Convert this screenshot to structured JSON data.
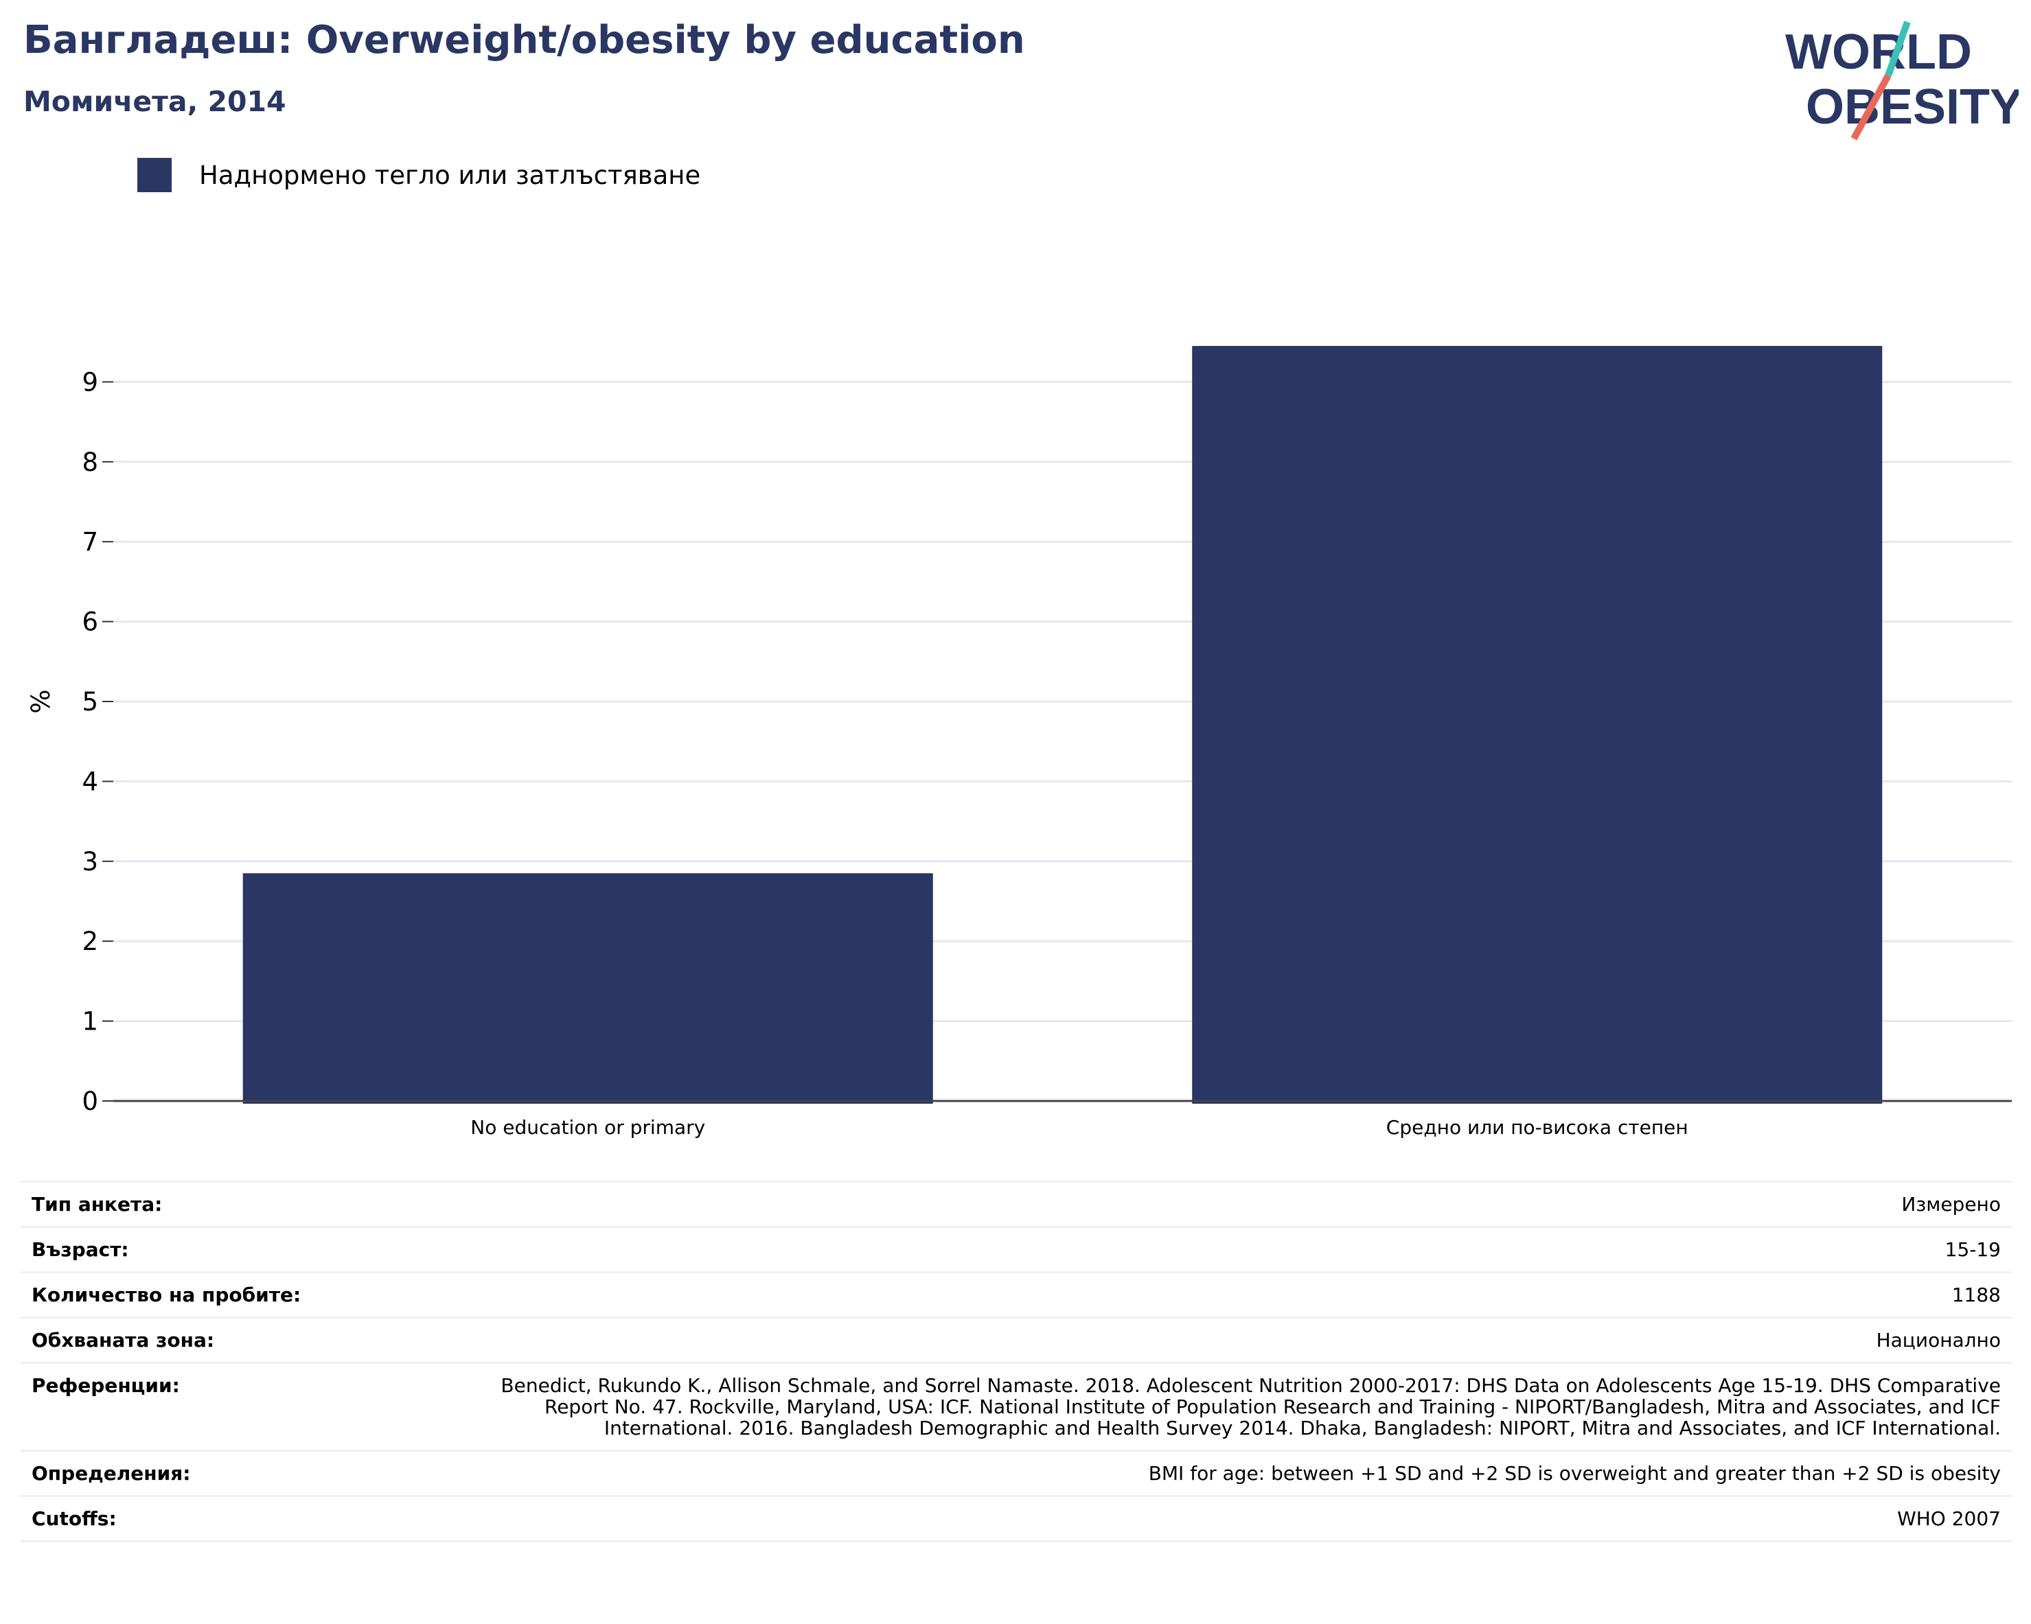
{
  "header": {
    "title": "Бангладеш: Overweight/obesity by education",
    "subtitle": "Момичета, 2014"
  },
  "logo": {
    "line1": "WORLD",
    "line2": "OBESITY",
    "colors": {
      "text": "#2a3663",
      "slash_top": "#3bbfb9",
      "slash_bottom": "#e8685a"
    }
  },
  "chart_data": {
    "type": "bar",
    "categories": [
      "No education or primary",
      "Средно или по-висока степен"
    ],
    "series": [
      {
        "name": "Наднормено тегло или затлъстяване",
        "values": [
          2.85,
          9.45
        ],
        "color": "#2a3663"
      }
    ],
    "ylabel": "%",
    "ylim": [
      0,
      10
    ],
    "yticks": [
      0,
      1,
      2,
      3,
      4,
      5,
      6,
      7,
      8,
      9
    ],
    "grid": true,
    "legend_position": "top-left"
  },
  "info": [
    {
      "label": "Тип анкета:",
      "value": "Измерено"
    },
    {
      "label": "Възраст:",
      "value": "15-19"
    },
    {
      "label": "Количество на пробите:",
      "value": "1188"
    },
    {
      "label": "Обхваната зона:",
      "value": "Национално"
    },
    {
      "label": "Референции:",
      "value": "Benedict, Rukundo K., Allison Schmale, and Sorrel Namaste. 2018. Adolescent Nutrition 2000-2017: DHS Data on Adolescents Age 15-19. DHS Comparative Report No. 47. Rockville, Maryland, USA: ICF. National Institute of Population Research and Training - NIPORT/Bangladesh, Mitra and Associates, and ICF International. 2016. Bangladesh Demographic and Health Survey 2014. Dhaka, Bangladesh: NIPORT, Mitra and Associates, and ICF International."
    },
    {
      "label": "Определения:",
      "value": "BMI for age: between +1 SD and +2 SD is overweight and greater than +2 SD is obesity"
    },
    {
      "label": "Cutoffs:",
      "value": "WHO 2007"
    }
  ]
}
